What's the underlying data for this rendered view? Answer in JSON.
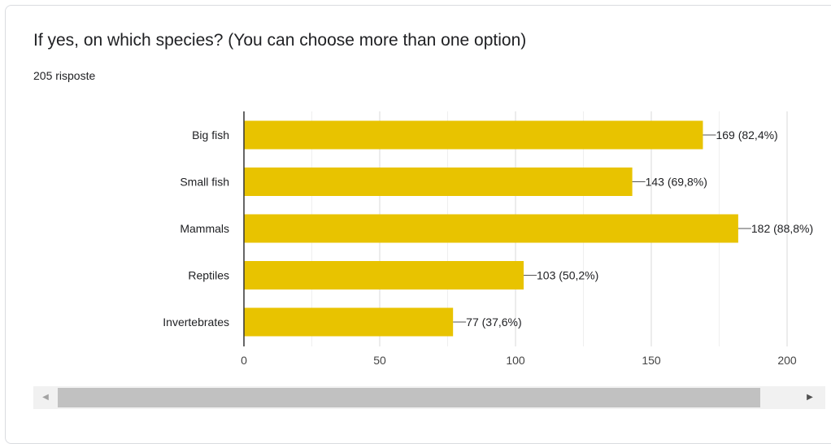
{
  "question": {
    "title": "If yes, on which species? (You can choose more than one option)",
    "responses": "205 risposte"
  },
  "colors": {
    "bar": "#e8c300",
    "axis": "#333333",
    "grid": "#e0e0e0",
    "text": "#202124"
  },
  "chart_data": {
    "type": "bar",
    "orientation": "horizontal",
    "categories": [
      "Big fish",
      "Small fish",
      "Mammals",
      "Reptiles",
      "Invertebrates"
    ],
    "values": [
      169,
      143,
      182,
      103,
      77
    ],
    "data_labels": [
      "169 (82,4%)",
      "143 (69,8%)",
      "182 (88,8%)",
      "103 (50,2%)",
      "77 (37,6%)"
    ],
    "x_ticks": [
      0,
      50,
      100,
      150,
      200
    ],
    "xlim": [
      0,
      200
    ],
    "grid": true,
    "legend": "none"
  },
  "scrollbar": {
    "left_arrow": "◀",
    "right_arrow": "▶"
  }
}
